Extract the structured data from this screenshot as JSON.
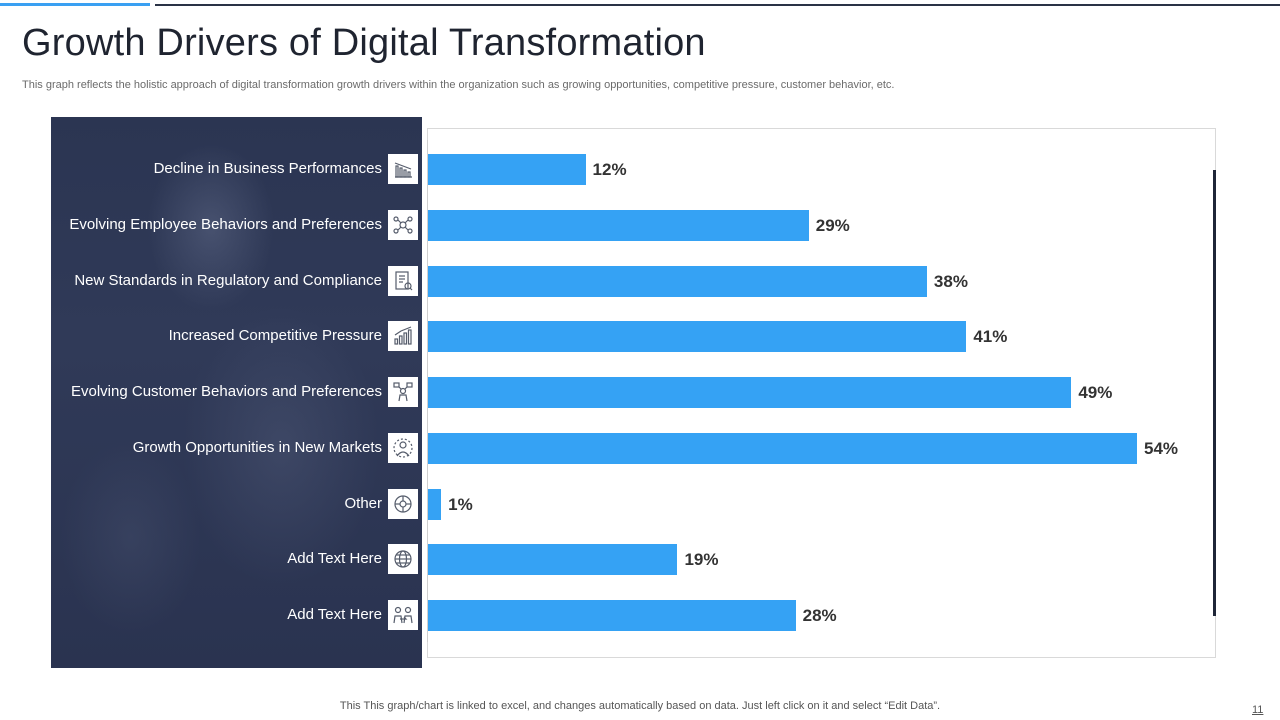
{
  "slide": {
    "title": "Growth Drivers of Digital Transformation",
    "subtitle": "This graph reflects the holistic approach of digital transformation growth drivers within the organization such as growing opportunities, competitive pressure, customer behavior, etc.",
    "footer_note": "This This graph/chart is linked to excel,  and changes automatically based on data. Just left click on it and select “Edit Data”.",
    "page_number": "11"
  },
  "colors": {
    "bar": "#35a2f4",
    "accent_line": "#3aa0f2",
    "panel": "#2b3552",
    "title": "#1f2430"
  },
  "chart_data": {
    "type": "bar",
    "orientation": "horizontal",
    "title": "",
    "xlabel": "",
    "ylabel": "",
    "xlim": [
      0,
      60
    ],
    "grid": false,
    "categories": [
      "Decline in Business Performances",
      "Evolving Employee Behaviors and Preferences",
      "New Standards in Regulatory and Compliance",
      "Increased Competitive Pressure",
      "Evolving Customer Behaviors and Preferences",
      "Growth Opportunities in New Markets",
      "Other",
      "Add Text Here",
      "Add Text Here"
    ],
    "values": [
      12,
      29,
      38,
      41,
      49,
      54,
      1,
      19,
      28
    ],
    "value_labels": [
      "12%",
      "29%",
      "38%",
      "41%",
      "49%",
      "54%",
      "1%",
      "19%",
      "28%"
    ],
    "icons": [
      "declining-chart-icon",
      "employee-network-icon",
      "compliance-document-icon",
      "rising-bar-chart-icon",
      "customer-behavior-icon",
      "growth-person-icon",
      "other-network-icon",
      "globe-icon",
      "people-exchange-icon"
    ]
  }
}
